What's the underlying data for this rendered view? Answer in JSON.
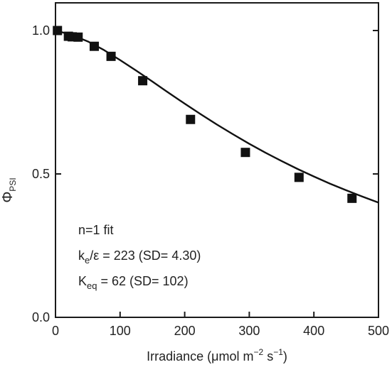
{
  "chart_data": {
    "type": "scatter",
    "xlabel": {
      "main": "Irradiance (μmol m",
      "sup1": "−2",
      "mid": " s",
      "sup2": "−1",
      "end": ")"
    },
    "ylabel": {
      "main": "Φ",
      "sub": "PSI"
    },
    "xlim": [
      0,
      500
    ],
    "ylim": [
      0,
      1.0
    ],
    "x_ticks": [
      0,
      100,
      200,
      300,
      400,
      500
    ],
    "x_tick_labels": [
      "0",
      "100",
      "200",
      "300",
      "400",
      "500"
    ],
    "y_ticks": [
      0,
      0.5,
      1.0
    ],
    "y_tick_labels": [
      "0.0",
      "0.5",
      "1.0"
    ],
    "grid": false,
    "series": [
      {
        "marker": "square",
        "points": [
          {
            "x": 3,
            "y": 1.0
          },
          {
            "x": 20,
            "y": 0.98
          },
          {
            "x": 26,
            "y": 0.978
          },
          {
            "x": 35,
            "y": 0.977
          },
          {
            "x": 60,
            "y": 0.945
          },
          {
            "x": 86,
            "y": 0.91
          },
          {
            "x": 135,
            "y": 0.825
          },
          {
            "x": 209,
            "y": 0.69
          },
          {
            "x": 294,
            "y": 0.575
          },
          {
            "x": 377,
            "y": 0.488
          },
          {
            "x": 459,
            "y": 0.415
          }
        ]
      }
    ],
    "fit_curve": {
      "x": [
        0,
        25,
        50,
        75,
        100,
        125,
        150,
        175,
        200,
        225,
        250,
        275,
        300,
        325,
        350,
        375,
        400,
        425,
        450,
        475,
        500
      ],
      "y": [
        1.0,
        0.985,
        0.962,
        0.932,
        0.897,
        0.86,
        0.822,
        0.783,
        0.745,
        0.708,
        0.672,
        0.638,
        0.605,
        0.574,
        0.545,
        0.517,
        0.491,
        0.466,
        0.443,
        0.421,
        0.4
      ]
    },
    "annotations": [
      {
        "name": "fit-model",
        "main": "n=1 fit"
      },
      {
        "name": "ke-eps",
        "main": "k",
        "sub": "e",
        "rest": "/ε = 223 (SD= 4.30)"
      },
      {
        "name": "keq",
        "main": "K",
        "sub": "eq",
        "rest": " = 62 (SD= 102)"
      }
    ]
  }
}
